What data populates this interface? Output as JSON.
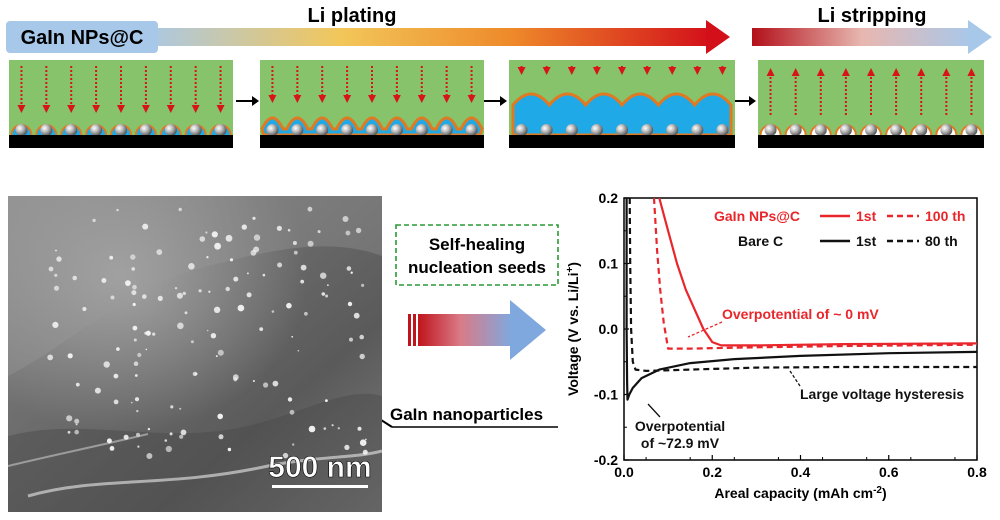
{
  "top": {
    "label_left": "GaIn NPs@C",
    "label_plating": "Li plating",
    "label_stripping": "Li stripping"
  },
  "sem": {
    "scale_bar": "500 nm",
    "annotation": "GaIn nanoparticles"
  },
  "callout": {
    "line1": "Self-healing",
    "line2": "nucleation seeds"
  },
  "colors": {
    "substrate_green": "#86c36a",
    "li_blue": "#1fa9e6",
    "shell_orange": "#e07a22",
    "arrow_red": "#d8141a",
    "gradient_light_blue": "#a8c8ea",
    "dash_box_green": "#2a9a34"
  },
  "chart_data": {
    "type": "line",
    "xlabel_main": "Areal capacity (mAh cm",
    "xlabel_sup": "-2",
    "xlabel_end": ")",
    "ylabel_main": "Voltage (V vs. Li/Li",
    "ylabel_sup": "+",
    "ylabel_end": ")",
    "xlim": [
      0.0,
      0.8
    ],
    "ylim": [
      -0.2,
      0.2
    ],
    "xticks": [
      "0.0",
      "0.2",
      "0.4",
      "0.6",
      "0.8"
    ],
    "yticks": [
      "-0.2",
      "-0.1",
      "0.0",
      "0.1",
      "0.2"
    ],
    "legend": {
      "group1": "GaIn NPs@C",
      "group2": "Bare C",
      "g1_solid": "1st",
      "g1_dash": "100 th",
      "g2_solid": "1st",
      "g2_dash": "80 th"
    },
    "series": [
      {
        "name": "GaIn NPs@C 1st",
        "color": "#e8262b",
        "dash": false,
        "points": [
          [
            0.08,
            0.2
          ],
          [
            0.1,
            0.15
          ],
          [
            0.12,
            0.1
          ],
          [
            0.14,
            0.06
          ],
          [
            0.16,
            0.03
          ],
          [
            0.18,
            0.0
          ],
          [
            0.2,
            -0.02
          ],
          [
            0.22,
            -0.025
          ],
          [
            0.3,
            -0.025
          ],
          [
            0.5,
            -0.023
          ],
          [
            0.8,
            -0.022
          ]
        ]
      },
      {
        "name": "GaIn NPs@C 100 th",
        "color": "#e8262b",
        "dash": true,
        "points": [
          [
            0.068,
            0.2
          ],
          [
            0.075,
            0.12
          ],
          [
            0.082,
            0.06
          ],
          [
            0.09,
            0.01
          ],
          [
            0.1,
            -0.03
          ],
          [
            0.15,
            -0.03
          ],
          [
            0.3,
            -0.028
          ],
          [
            0.5,
            -0.026
          ],
          [
            0.8,
            -0.024
          ]
        ]
      },
      {
        "name": "Bare C 1st",
        "color": "#111111",
        "dash": false,
        "points": [
          [
            0.006,
            0.2
          ],
          [
            0.006,
            0.0
          ],
          [
            0.007,
            -0.08
          ],
          [
            0.008,
            -0.108
          ],
          [
            0.012,
            -0.1
          ],
          [
            0.02,
            -0.09
          ],
          [
            0.04,
            -0.075
          ],
          [
            0.08,
            -0.062
          ],
          [
            0.15,
            -0.052
          ],
          [
            0.25,
            -0.046
          ],
          [
            0.4,
            -0.041
          ],
          [
            0.6,
            -0.037
          ],
          [
            0.8,
            -0.035
          ]
        ]
      },
      {
        "name": "Bare C 80 th",
        "color": "#111111",
        "dash": true,
        "points": [
          [
            0.013,
            0.2
          ],
          [
            0.014,
            0.1
          ],
          [
            0.016,
            0.0
          ],
          [
            0.02,
            -0.05
          ],
          [
            0.026,
            -0.062
          ],
          [
            0.05,
            -0.064
          ],
          [
            0.15,
            -0.062
          ],
          [
            0.3,
            -0.059
          ],
          [
            0.5,
            -0.058
          ],
          [
            0.8,
            -0.058
          ]
        ]
      }
    ],
    "annotations": [
      {
        "text": "Overpotential of ~ 0 mV",
        "color": "#e8262b"
      },
      {
        "text": "Large voltage hysteresis",
        "color": "#111111"
      },
      {
        "text": "Overpotential",
        "color": "#111111"
      },
      {
        "text": "of ~72.9 mV",
        "color": "#111111"
      }
    ]
  }
}
